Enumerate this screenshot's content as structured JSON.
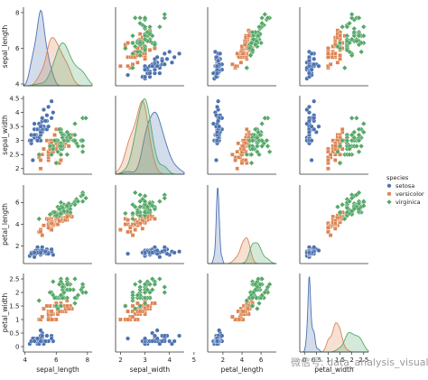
{
  "chart_data": {
    "type": "scatter",
    "kind": "pairplot",
    "variables": [
      "sepal_length",
      "sepal_width",
      "petal_length",
      "petal_width"
    ],
    "ticks": {
      "sepal_length": [
        4,
        6,
        8
      ],
      "sepal_width": [
        2,
        3,
        4,
        5
      ],
      "petal_length": [
        2,
        4,
        6
      ],
      "petal_width": [
        0.0,
        0.5,
        1.0,
        1.5,
        2.0,
        2.5
      ]
    },
    "row_ticks": {
      "sepal_width": [
        2.0,
        2.5,
        3.0,
        3.5,
        4.0,
        4.5
      ],
      "petal_length": [
        2,
        4,
        6
      ],
      "petal_width": [
        0.0,
        0.5,
        1.0,
        1.5,
        2.0,
        2.5
      ]
    },
    "ranges": {
      "sepal_length": [
        3.9,
        8.3
      ],
      "sepal_width": [
        1.8,
        4.6
      ],
      "petal_length": [
        0.4,
        7.6
      ],
      "petal_width": [
        -0.2,
        2.7
      ]
    },
    "legend": {
      "title": "species",
      "position": "right",
      "entries": [
        {
          "name": "setosa",
          "color": "#4c72b0",
          "marker": "circle"
        },
        {
          "name": "versicolor",
          "color": "#dd8452",
          "marker": "square"
        },
        {
          "name": "virginica",
          "color": "#55a868",
          "marker": "diamond"
        }
      ]
    },
    "diagonal": "kde",
    "series": [
      {
        "name": "setosa",
        "points": [
          [
            5.1,
            3.5,
            1.4,
            0.2
          ],
          [
            4.9,
            3.0,
            1.4,
            0.2
          ],
          [
            4.7,
            3.2,
            1.3,
            0.2
          ],
          [
            4.6,
            3.1,
            1.5,
            0.2
          ],
          [
            5.0,
            3.6,
            1.4,
            0.2
          ],
          [
            5.4,
            3.9,
            1.7,
            0.4
          ],
          [
            4.6,
            3.4,
            1.4,
            0.3
          ],
          [
            5.0,
            3.4,
            1.5,
            0.2
          ],
          [
            4.4,
            2.9,
            1.4,
            0.2
          ],
          [
            4.9,
            3.1,
            1.5,
            0.1
          ],
          [
            5.4,
            3.7,
            1.5,
            0.2
          ],
          [
            4.8,
            3.4,
            1.6,
            0.2
          ],
          [
            4.8,
            3.0,
            1.4,
            0.1
          ],
          [
            4.3,
            3.0,
            1.1,
            0.1
          ],
          [
            5.8,
            4.0,
            1.2,
            0.2
          ],
          [
            5.7,
            4.4,
            1.5,
            0.4
          ],
          [
            5.4,
            3.9,
            1.3,
            0.4
          ],
          [
            5.1,
            3.5,
            1.4,
            0.3
          ],
          [
            5.7,
            3.8,
            1.7,
            0.3
          ],
          [
            5.1,
            3.8,
            1.5,
            0.3
          ],
          [
            5.4,
            3.4,
            1.7,
            0.2
          ],
          [
            5.1,
            3.7,
            1.5,
            0.4
          ],
          [
            4.6,
            3.6,
            1.0,
            0.2
          ],
          [
            5.1,
            3.3,
            1.7,
            0.5
          ],
          [
            4.8,
            3.4,
            1.9,
            0.2
          ],
          [
            5.0,
            3.0,
            1.6,
            0.2
          ],
          [
            5.0,
            3.4,
            1.6,
            0.4
          ],
          [
            5.2,
            3.5,
            1.5,
            0.2
          ],
          [
            5.2,
            3.4,
            1.4,
            0.2
          ],
          [
            4.7,
            3.2,
            1.6,
            0.2
          ],
          [
            4.8,
            3.1,
            1.6,
            0.2
          ],
          [
            5.4,
            3.4,
            1.5,
            0.4
          ],
          [
            5.2,
            4.1,
            1.5,
            0.1
          ],
          [
            5.5,
            4.2,
            1.4,
            0.2
          ],
          [
            4.9,
            3.1,
            1.5,
            0.2
          ],
          [
            5.0,
            3.2,
            1.2,
            0.2
          ],
          [
            5.5,
            3.5,
            1.3,
            0.2
          ],
          [
            4.9,
            3.6,
            1.4,
            0.1
          ],
          [
            4.4,
            3.0,
            1.3,
            0.2
          ],
          [
            5.1,
            3.4,
            1.5,
            0.2
          ],
          [
            5.0,
            3.5,
            1.3,
            0.3
          ],
          [
            4.5,
            2.3,
            1.3,
            0.3
          ],
          [
            4.4,
            3.2,
            1.3,
            0.2
          ],
          [
            5.0,
            3.5,
            1.6,
            0.6
          ],
          [
            5.1,
            3.8,
            1.9,
            0.4
          ],
          [
            4.8,
            3.0,
            1.4,
            0.3
          ],
          [
            5.1,
            3.8,
            1.6,
            0.2
          ],
          [
            4.6,
            3.2,
            1.4,
            0.2
          ],
          [
            5.3,
            3.7,
            1.5,
            0.2
          ],
          [
            5.0,
            3.3,
            1.4,
            0.2
          ]
        ]
      },
      {
        "name": "versicolor",
        "points": [
          [
            7.0,
            3.2,
            4.7,
            1.4
          ],
          [
            6.4,
            3.2,
            4.5,
            1.5
          ],
          [
            6.9,
            3.1,
            4.9,
            1.5
          ],
          [
            5.5,
            2.3,
            4.0,
            1.3
          ],
          [
            6.5,
            2.8,
            4.6,
            1.5
          ],
          [
            5.7,
            2.8,
            4.5,
            1.3
          ],
          [
            6.3,
            3.3,
            4.7,
            1.6
          ],
          [
            4.9,
            2.4,
            3.3,
            1.0
          ],
          [
            6.6,
            2.9,
            4.6,
            1.3
          ],
          [
            5.2,
            2.7,
            3.9,
            1.4
          ],
          [
            5.0,
            2.0,
            3.5,
            1.0
          ],
          [
            5.9,
            3.0,
            4.2,
            1.5
          ],
          [
            6.0,
            2.2,
            4.0,
            1.0
          ],
          [
            6.1,
            2.9,
            4.7,
            1.4
          ],
          [
            5.6,
            2.9,
            3.6,
            1.3
          ],
          [
            6.7,
            3.1,
            4.4,
            1.4
          ],
          [
            5.6,
            3.0,
            4.5,
            1.5
          ],
          [
            5.8,
            2.7,
            4.1,
            1.0
          ],
          [
            6.2,
            2.2,
            4.5,
            1.5
          ],
          [
            5.6,
            2.5,
            3.9,
            1.1
          ],
          [
            5.9,
            3.2,
            4.8,
            1.8
          ],
          [
            6.1,
            2.8,
            4.0,
            1.3
          ],
          [
            6.3,
            2.5,
            4.9,
            1.5
          ],
          [
            6.1,
            2.8,
            4.7,
            1.2
          ],
          [
            6.4,
            2.9,
            4.3,
            1.3
          ],
          [
            6.6,
            3.0,
            4.4,
            1.4
          ],
          [
            6.8,
            2.8,
            4.8,
            1.4
          ],
          [
            6.7,
            3.0,
            5.0,
            1.7
          ],
          [
            6.0,
            2.9,
            4.5,
            1.5
          ],
          [
            5.7,
            2.6,
            3.5,
            1.0
          ],
          [
            5.5,
            2.4,
            3.8,
            1.1
          ],
          [
            5.5,
            2.4,
            3.7,
            1.0
          ],
          [
            5.8,
            2.7,
            3.9,
            1.2
          ],
          [
            6.0,
            2.7,
            5.1,
            1.6
          ],
          [
            5.4,
            3.0,
            4.5,
            1.5
          ],
          [
            6.0,
            3.4,
            4.5,
            1.6
          ],
          [
            6.7,
            3.1,
            4.7,
            1.5
          ],
          [
            6.3,
            2.3,
            4.4,
            1.3
          ],
          [
            5.6,
            3.0,
            4.1,
            1.3
          ],
          [
            5.5,
            2.5,
            4.0,
            1.3
          ],
          [
            5.5,
            2.6,
            4.4,
            1.2
          ],
          [
            6.1,
            3.0,
            4.6,
            1.4
          ],
          [
            5.8,
            2.6,
            4.0,
            1.2
          ],
          [
            5.0,
            2.3,
            3.3,
            1.0
          ],
          [
            5.6,
            2.7,
            4.2,
            1.3
          ],
          [
            5.7,
            3.0,
            4.2,
            1.2
          ],
          [
            5.7,
            2.9,
            4.2,
            1.3
          ],
          [
            6.2,
            2.9,
            4.3,
            1.3
          ],
          [
            5.1,
            2.5,
            3.0,
            1.1
          ],
          [
            5.7,
            2.8,
            4.1,
            1.3
          ]
        ]
      },
      {
        "name": "virginica",
        "points": [
          [
            6.3,
            3.3,
            6.0,
            2.5
          ],
          [
            5.8,
            2.7,
            5.1,
            1.9
          ],
          [
            7.1,
            3.0,
            5.9,
            2.1
          ],
          [
            6.3,
            2.9,
            5.6,
            1.8
          ],
          [
            6.5,
            3.0,
            5.8,
            2.2
          ],
          [
            7.6,
            3.0,
            6.6,
            2.1
          ],
          [
            4.9,
            2.5,
            4.5,
            1.7
          ],
          [
            7.3,
            2.9,
            6.3,
            1.8
          ],
          [
            6.7,
            2.5,
            5.8,
            1.8
          ],
          [
            7.2,
            3.6,
            6.1,
            2.5
          ],
          [
            6.5,
            3.2,
            5.1,
            2.0
          ],
          [
            6.4,
            2.7,
            5.3,
            1.9
          ],
          [
            6.8,
            3.0,
            5.5,
            2.1
          ],
          [
            5.7,
            2.5,
            5.0,
            2.0
          ],
          [
            5.8,
            2.8,
            5.1,
            2.4
          ],
          [
            6.4,
            3.2,
            5.3,
            2.3
          ],
          [
            6.5,
            3.0,
            5.5,
            1.8
          ],
          [
            7.7,
            3.8,
            6.7,
            2.2
          ],
          [
            7.7,
            2.6,
            6.9,
            2.3
          ],
          [
            6.0,
            2.2,
            5.0,
            1.5
          ],
          [
            6.9,
            3.2,
            5.7,
            2.3
          ],
          [
            5.6,
            2.8,
            4.9,
            2.0
          ],
          [
            7.7,
            2.8,
            6.7,
            2.0
          ],
          [
            6.3,
            2.7,
            4.9,
            1.8
          ],
          [
            6.7,
            3.3,
            5.7,
            2.1
          ],
          [
            7.2,
            3.2,
            6.0,
            1.8
          ],
          [
            6.2,
            2.8,
            4.8,
            1.8
          ],
          [
            6.1,
            3.0,
            4.9,
            1.8
          ],
          [
            6.4,
            2.8,
            5.6,
            2.1
          ],
          [
            7.2,
            3.0,
            5.8,
            1.6
          ],
          [
            7.4,
            2.8,
            6.1,
            1.9
          ],
          [
            7.9,
            3.8,
            6.4,
            2.0
          ],
          [
            6.4,
            2.8,
            5.6,
            2.2
          ],
          [
            6.3,
            2.8,
            5.1,
            1.5
          ],
          [
            6.1,
            2.6,
            5.6,
            1.4
          ],
          [
            7.7,
            3.0,
            6.1,
            2.3
          ],
          [
            6.3,
            3.4,
            5.6,
            2.4
          ],
          [
            6.4,
            3.1,
            5.5,
            1.8
          ],
          [
            6.0,
            3.0,
            4.8,
            1.8
          ],
          [
            6.9,
            3.1,
            5.4,
            2.1
          ],
          [
            6.7,
            3.1,
            5.6,
            2.4
          ],
          [
            6.9,
            3.1,
            5.1,
            2.3
          ],
          [
            5.8,
            2.7,
            5.1,
            1.9
          ],
          [
            6.8,
            3.2,
            5.9,
            2.3
          ],
          [
            6.7,
            3.3,
            5.7,
            2.5
          ],
          [
            6.7,
            3.0,
            5.2,
            2.3
          ],
          [
            6.3,
            2.5,
            5.0,
            1.9
          ],
          [
            6.5,
            3.0,
            5.2,
            2.0
          ],
          [
            6.2,
            3.4,
            5.4,
            2.3
          ],
          [
            5.9,
            3.0,
            5.1,
            1.8
          ]
        ]
      }
    ]
  },
  "watermark": "微信号: data_analysis_visual"
}
